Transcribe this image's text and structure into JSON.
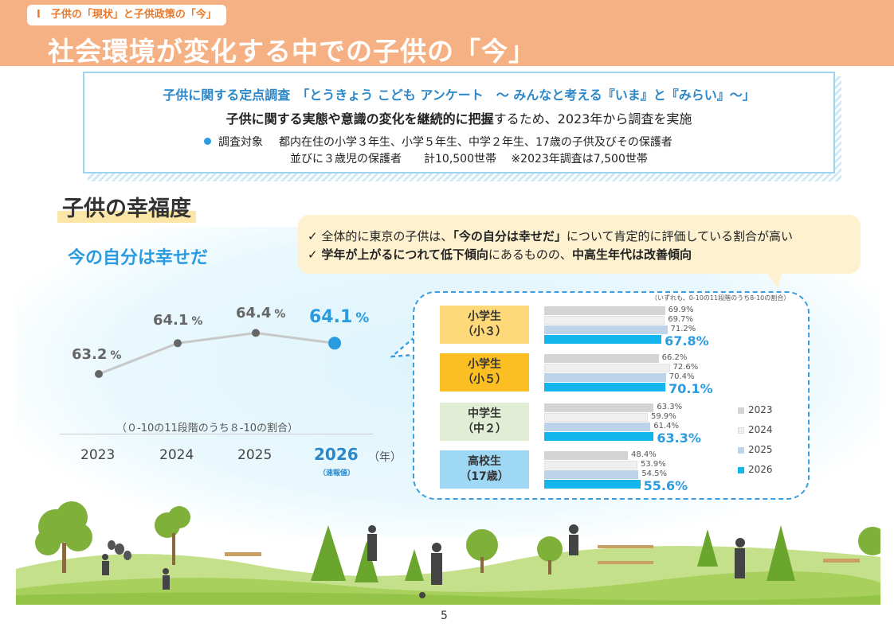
{
  "header": {
    "section_tag": "Ⅰ　子供の「現状」と子供政策の「今」",
    "title": "社会環境が変化する中での子供の「今」"
  },
  "survey": {
    "title": "子供に関する定点調査　「とうきょう こども アンケート　～ みんなと考える『いま』と『みらい』～」",
    "desc_bold": "子供に関する実態や意識の変化を継続的に把握",
    "desc_rest": "するため、2023年から調査を実施",
    "target_label": "調査対象",
    "target_line1": "都内在住の小学３年生、小学５年生、中学２年生、17歳の子供及びその保護者",
    "target_line2": "並びに３歳児の保護者　　計10,500世帯　 ※2023年調査は7,500世帯"
  },
  "happiness": {
    "heading": "子供の幸福度",
    "callout": {
      "line1_a": "全体的に東京の子供は、",
      "line1_b": "「今の自分は幸せだ」",
      "line1_c": "について肯定的に評価している割合が高い",
      "line2_a": "学年が上がるにつれて低下傾向",
      "line2_b": "にあるものの、",
      "line2_c": "中高生年代は改善傾向"
    },
    "check": "✓"
  },
  "chart_data": [
    {
      "type": "line",
      "title": "今の自分は幸せだ",
      "x": [
        "2023",
        "2024",
        "2025",
        "2026"
      ],
      "x_unit": "（年）",
      "x_note": "（速報値）",
      "values": [
        63.2,
        64.1,
        64.4,
        64.1
      ],
      "value_labels": [
        "63.2",
        "64.1",
        "64.4",
        "64.1"
      ],
      "unit": "%",
      "note": "（０-10の11段階のうち８-10の割合）",
      "colors": {
        "line": "#c8c8c8",
        "point": "#666666",
        "highlight": "#2b9be0"
      }
    },
    {
      "type": "bar",
      "note": "（いずれも、0-10の11段階のうち8-10の割合）",
      "categories": [
        "小学生\n（小３）",
        "小学生\n（小５）",
        "中学生\n（中２）",
        "高校生\n（17歳）"
      ],
      "category_colors": [
        "#fdd97a",
        "#fbbf24",
        "#e2edd5",
        "#9fd8f5"
      ],
      "xlim": [
        0,
        100
      ],
      "series": [
        {
          "name": "2023",
          "values": [
            69.9,
            66.2,
            63.3,
            48.4
          ],
          "labels": [
            "69.9%",
            "66.2%",
            "63.3%",
            "48.4%"
          ],
          "color": "#d4d4d4"
        },
        {
          "name": "2024",
          "values": [
            69.7,
            72.6,
            59.9,
            53.9
          ],
          "labels": [
            "69.7%",
            "72.6%",
            "59.9%",
            "53.9%"
          ],
          "color": "#efefef"
        },
        {
          "name": "2025",
          "values": [
            71.2,
            70.4,
            61.4,
            54.5
          ],
          "labels": [
            "71.2%",
            "70.4%",
            "61.4%",
            "54.5%"
          ],
          "color": "#bcd3ea"
        },
        {
          "name": "2026",
          "values": [
            67.8,
            70.1,
            63.3,
            55.6
          ],
          "labels": [
            "67.8%",
            "70.1%",
            "63.3%",
            "55.6%"
          ],
          "color": "#12b5ec"
        }
      ]
    }
  ],
  "footer": {
    "page_number": "5"
  }
}
